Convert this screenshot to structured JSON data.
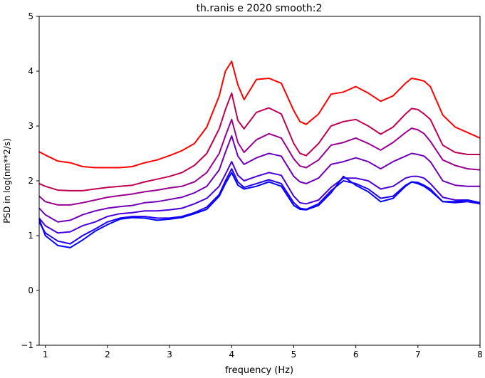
{
  "chart_data": {
    "type": "line",
    "title": "th.ranis e 2020 smooth:2",
    "xlabel": "frequency (Hz)",
    "ylabel": "PSD in log(nm**2/s)",
    "xlim": [
      0.9,
      8.0
    ],
    "ylim": [
      -1,
      5
    ],
    "xticks": [
      1,
      2,
      3,
      4,
      5,
      6,
      7,
      8
    ],
    "yticks": [
      -1,
      0,
      1,
      2,
      3,
      4,
      5
    ],
    "xtick_labels": [
      "1",
      "2",
      "3",
      "4",
      "5",
      "6",
      "7",
      "8"
    ],
    "ytick_labels": [
      "−1",
      "0",
      "1",
      "2",
      "3",
      "4",
      "5"
    ],
    "grid": false,
    "x": [
      0.9,
      1.0,
      1.2,
      1.4,
      1.6,
      1.8,
      2.0,
      2.2,
      2.4,
      2.6,
      2.8,
      3.0,
      3.2,
      3.4,
      3.6,
      3.8,
      3.9,
      4.0,
      4.1,
      4.2,
      4.4,
      4.6,
      4.8,
      5.0,
      5.1,
      5.2,
      5.4,
      5.6,
      5.8,
      6.0,
      6.2,
      6.4,
      6.6,
      6.8,
      6.9,
      7.0,
      7.1,
      7.2,
      7.4,
      7.6,
      7.8,
      8.0
    ],
    "series": [
      {
        "color": "#ff0000",
        "values": [
          2.53,
          2.47,
          2.36,
          2.33,
          2.26,
          2.24,
          2.24,
          2.24,
          2.26,
          2.33,
          2.38,
          2.46,
          2.55,
          2.68,
          2.98,
          3.55,
          4.0,
          4.18,
          3.75,
          3.48,
          3.85,
          3.87,
          3.78,
          3.28,
          3.08,
          3.03,
          3.22,
          3.58,
          3.62,
          3.72,
          3.6,
          3.45,
          3.55,
          3.78,
          3.87,
          3.85,
          3.82,
          3.72,
          3.2,
          2.98,
          2.88,
          2.78
        ]
      },
      {
        "color": "#c00050",
        "values": [
          1.95,
          1.9,
          1.83,
          1.82,
          1.82,
          1.85,
          1.88,
          1.9,
          1.92,
          1.98,
          2.03,
          2.08,
          2.15,
          2.28,
          2.5,
          2.95,
          3.3,
          3.6,
          3.1,
          2.95,
          3.25,
          3.33,
          3.22,
          2.68,
          2.5,
          2.46,
          2.68,
          3.0,
          3.08,
          3.12,
          3.0,
          2.85,
          2.98,
          3.22,
          3.32,
          3.3,
          3.22,
          3.12,
          2.65,
          2.52,
          2.48,
          2.48
        ]
      },
      {
        "color": "#9a0090",
        "values": [
          1.72,
          1.62,
          1.56,
          1.56,
          1.6,
          1.65,
          1.7,
          1.73,
          1.76,
          1.8,
          1.83,
          1.87,
          1.9,
          1.98,
          2.15,
          2.5,
          2.82,
          3.12,
          2.7,
          2.52,
          2.75,
          2.86,
          2.78,
          2.4,
          2.27,
          2.24,
          2.38,
          2.65,
          2.7,
          2.78,
          2.68,
          2.56,
          2.7,
          2.88,
          2.96,
          2.93,
          2.86,
          2.72,
          2.38,
          2.28,
          2.22,
          2.2
        ]
      },
      {
        "color": "#7000b8",
        "values": [
          1.5,
          1.38,
          1.25,
          1.28,
          1.38,
          1.45,
          1.5,
          1.53,
          1.55,
          1.6,
          1.62,
          1.66,
          1.7,
          1.78,
          1.9,
          2.2,
          2.52,
          2.82,
          2.45,
          2.3,
          2.42,
          2.5,
          2.45,
          2.08,
          1.98,
          1.95,
          2.05,
          2.3,
          2.35,
          2.42,
          2.35,
          2.22,
          2.35,
          2.45,
          2.5,
          2.48,
          2.45,
          2.35,
          2.0,
          1.92,
          1.9,
          1.9
        ]
      },
      {
        "color": "#4c00d8",
        "values": [
          1.32,
          1.18,
          1.05,
          1.07,
          1.18,
          1.25,
          1.35,
          1.4,
          1.42,
          1.45,
          1.45,
          1.47,
          1.5,
          1.58,
          1.68,
          1.9,
          2.12,
          2.35,
          2.1,
          2.0,
          2.08,
          2.15,
          2.1,
          1.72,
          1.6,
          1.58,
          1.65,
          1.88,
          2.05,
          2.05,
          2.0,
          1.85,
          1.9,
          2.05,
          2.08,
          2.08,
          2.05,
          1.95,
          1.7,
          1.65,
          1.65,
          1.6
        ]
      },
      {
        "color": "#2000f0",
        "values": [
          1.25,
          1.05,
          0.9,
          0.85,
          1.0,
          1.12,
          1.25,
          1.32,
          1.35,
          1.35,
          1.32,
          1.32,
          1.35,
          1.42,
          1.52,
          1.75,
          2.0,
          2.22,
          1.98,
          1.88,
          1.95,
          2.02,
          1.95,
          1.6,
          1.5,
          1.48,
          1.58,
          1.82,
          2.0,
          1.95,
          1.85,
          1.68,
          1.72,
          1.92,
          1.98,
          1.97,
          1.92,
          1.85,
          1.62,
          1.6,
          1.62,
          1.58
        ]
      },
      {
        "color": "#0000ff",
        "values": [
          1.3,
          1.0,
          0.82,
          0.78,
          0.92,
          1.08,
          1.2,
          1.3,
          1.33,
          1.32,
          1.28,
          1.3,
          1.33,
          1.4,
          1.48,
          1.72,
          1.95,
          2.15,
          1.92,
          1.85,
          1.9,
          1.98,
          1.9,
          1.55,
          1.48,
          1.47,
          1.55,
          1.78,
          2.08,
          1.92,
          1.8,
          1.62,
          1.68,
          1.9,
          1.98,
          1.95,
          1.9,
          1.82,
          1.62,
          1.62,
          1.65,
          1.6
        ]
      }
    ]
  }
}
